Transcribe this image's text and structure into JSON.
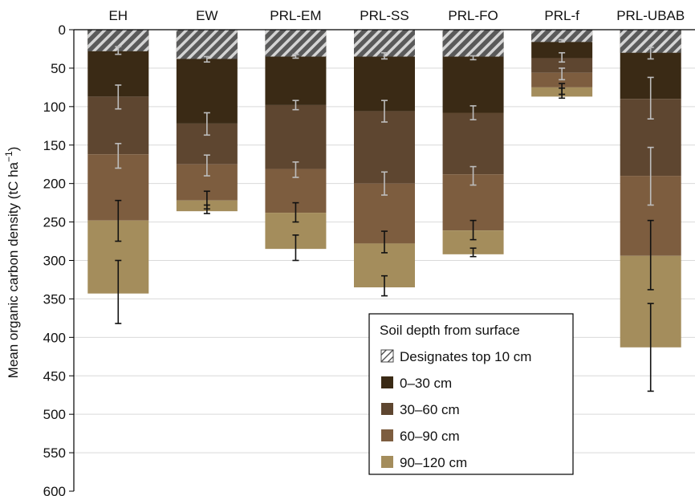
{
  "chart_data": {
    "type": "bar",
    "stacked": true,
    "y_axis_inverted": true,
    "ylabel": "Mean organic carbon density (tC ha",
    "ylabel_superscript": "−1",
    "ylabel_suffix": ")",
    "ylim": [
      0,
      600
    ],
    "yticks": [
      0,
      50,
      100,
      150,
      200,
      250,
      300,
      350,
      400,
      450,
      500,
      550,
      600
    ],
    "grid": true,
    "categories": [
      "EH",
      "EW",
      "PRL-EM",
      "PRL-SS",
      "PRL-FO",
      "PRL-f",
      "PRL-UBAB"
    ],
    "top10_depth": [
      28,
      38,
      35,
      35,
      35,
      16,
      30
    ],
    "series": [
      {
        "name": "0–30 cm",
        "color": "#3a2a15",
        "values": [
          87,
          122,
          98,
          106,
          108,
          37,
          90
        ]
      },
      {
        "name": "30–60 cm",
        "color": "#5e4630",
        "values": [
          75,
          53,
          83,
          94,
          80,
          19,
          100
        ]
      },
      {
        "name": "60–90 cm",
        "color": "#7d5d3f",
        "values": [
          86,
          47,
          57,
          78,
          73,
          19,
          104
        ]
      },
      {
        "name": "90–120 cm",
        "color": "#a48d5c",
        "values": [
          95,
          14,
          47,
          57,
          31,
          12,
          119
        ]
      }
    ],
    "errors": [
      [
        [
          22,
          32
        ],
        [
          72,
          103
        ],
        [
          148,
          180
        ],
        [
          222,
          275
        ],
        [
          300,
          382
        ]
      ],
      [
        [
          35,
          42
        ],
        [
          108,
          137
        ],
        [
          163,
          190
        ],
        [
          210,
          233
        ],
        [
          228,
          239
        ]
      ],
      [
        [
          32,
          37
        ],
        [
          92,
          104
        ],
        [
          172,
          192
        ],
        [
          225,
          250
        ],
        [
          267,
          300
        ]
      ],
      [
        [
          30,
          38
        ],
        [
          92,
          120
        ],
        [
          185,
          215
        ],
        [
          262,
          290
        ],
        [
          320,
          346
        ]
      ],
      [
        [
          34,
          39
        ],
        [
          99,
          117
        ],
        [
          178,
          202
        ],
        [
          248,
          273
        ],
        [
          284,
          295
        ]
      ],
      [
        [
          13,
          16
        ],
        [
          30,
          42
        ],
        [
          50,
          65
        ],
        [
          70,
          84
        ],
        [
          76,
          89
        ]
      ],
      [
        [
          23,
          38
        ],
        [
          62,
          116
        ],
        [
          153,
          228
        ],
        [
          248,
          338
        ],
        [
          356,
          470
        ]
      ]
    ],
    "errors_light": [
      [
        true,
        true,
        true,
        false,
        false
      ],
      [
        true,
        true,
        true,
        false,
        false
      ],
      [
        true,
        true,
        true,
        false,
        false
      ],
      [
        true,
        true,
        true,
        false,
        false
      ],
      [
        true,
        true,
        true,
        false,
        false
      ],
      [
        true,
        true,
        true,
        false,
        false
      ],
      [
        true,
        true,
        true,
        false,
        false
      ]
    ],
    "legend": {
      "title": "Soil depth from surface",
      "hatch_label": "Designates top 10 cm",
      "placement": "bottom-center"
    }
  }
}
